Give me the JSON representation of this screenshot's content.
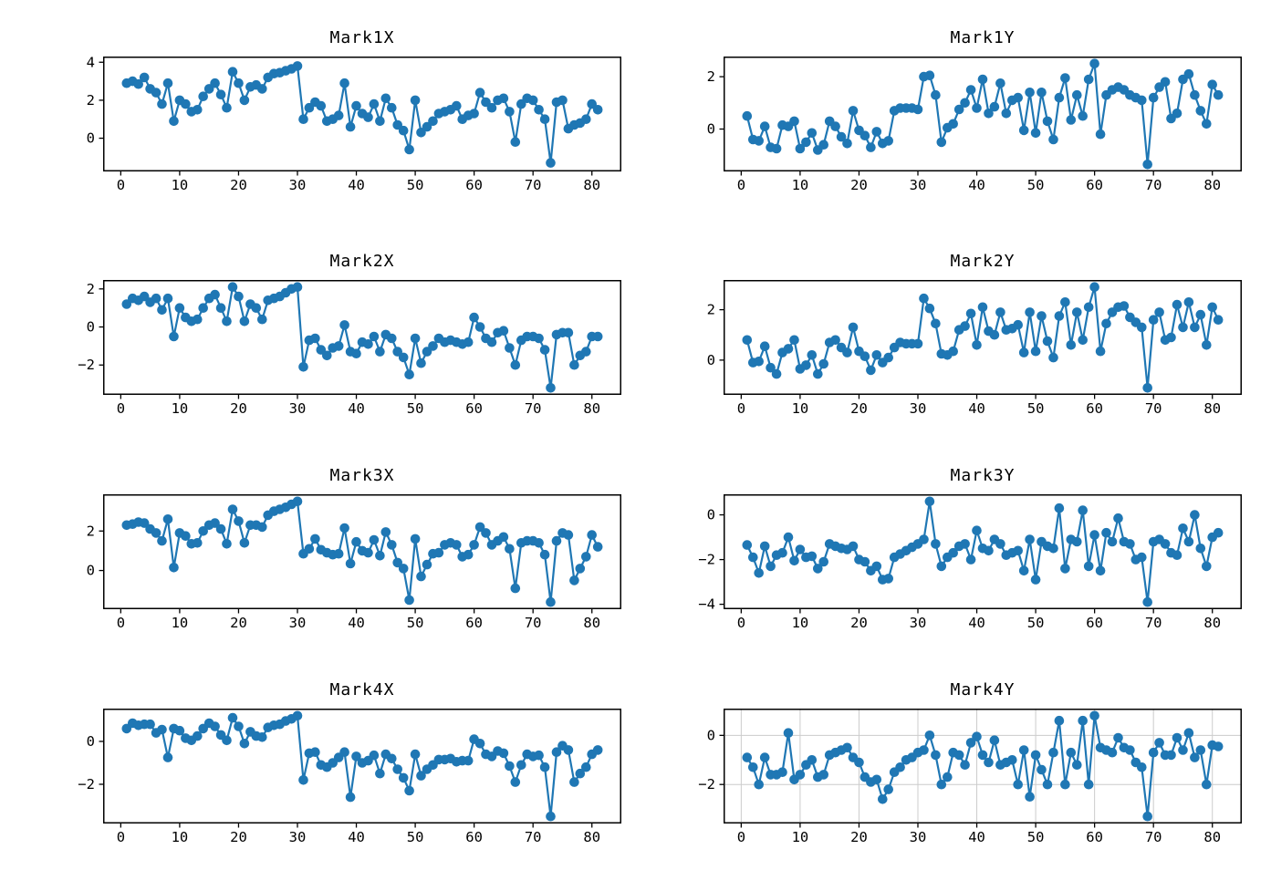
{
  "page": {
    "background": "#ffffff",
    "text_color": "#000000"
  },
  "chart_data": [
    {
      "id": "mark1x",
      "type": "line",
      "title": "Mark1X",
      "color": "#1f77b4",
      "marker": "circle",
      "grid": false,
      "legend": "none",
      "x_start": 1,
      "x_step": 1,
      "xlim": [
        -3,
        85
      ],
      "xticks": [
        0,
        10,
        20,
        30,
        40,
        50,
        60,
        70,
        80
      ],
      "ylim": [
        -1.75,
        4.3
      ],
      "yticks": [
        0,
        2,
        4
      ],
      "values": [
        2.9,
        3.0,
        2.85,
        3.2,
        2.6,
        2.4,
        1.8,
        2.9,
        0.9,
        2.0,
        1.8,
        1.4,
        1.5,
        2.2,
        2.6,
        2.9,
        2.3,
        1.6,
        3.5,
        2.9,
        2.0,
        2.7,
        2.8,
        2.6,
        3.2,
        3.4,
        3.45,
        3.55,
        3.65,
        3.8,
        1.0,
        1.6,
        1.9,
        1.7,
        0.9,
        1.0,
        1.2,
        2.9,
        0.6,
        1.7,
        1.3,
        1.1,
        1.8,
        0.9,
        2.1,
        1.6,
        0.7,
        0.4,
        -0.6,
        2.0,
        0.3,
        0.6,
        0.9,
        1.3,
        1.4,
        1.5,
        1.7,
        1.0,
        1.2,
        1.3,
        2.4,
        1.9,
        1.6,
        2.0,
        2.1,
        1.4,
        -0.2,
        1.8,
        2.1,
        2.0,
        1.5,
        1.0,
        -1.3,
        1.9,
        2.0,
        0.5,
        0.7,
        0.8,
        1.0,
        1.8,
        1.5
      ]
    },
    {
      "id": "mark1y",
      "type": "line",
      "title": "Mark1Y",
      "color": "#1f77b4",
      "marker": "circle",
      "grid": false,
      "legend": "none",
      "x_start": 1,
      "x_step": 1,
      "xlim": [
        -3,
        85
      ],
      "xticks": [
        0,
        10,
        20,
        30,
        40,
        50,
        60,
        70,
        80
      ],
      "ylim": [
        -1.62,
        2.77
      ],
      "yticks": [
        0,
        2
      ],
      "values": [
        0.5,
        -0.4,
        -0.45,
        0.1,
        -0.7,
        -0.75,
        0.15,
        0.1,
        0.3,
        -0.75,
        -0.5,
        -0.15,
        -0.8,
        -0.6,
        0.3,
        0.1,
        -0.3,
        -0.55,
        0.7,
        -0.05,
        -0.25,
        -0.7,
        -0.1,
        -0.55,
        -0.45,
        0.7,
        0.8,
        0.8,
        0.8,
        0.75,
        2.0,
        2.05,
        1.3,
        -0.5,
        0.05,
        0.2,
        0.75,
        1.0,
        1.5,
        0.8,
        1.9,
        0.6,
        0.85,
        1.75,
        0.6,
        1.1,
        1.2,
        -0.05,
        1.4,
        -0.15,
        1.4,
        0.3,
        -0.4,
        1.2,
        1.95,
        0.35,
        1.3,
        0.5,
        1.9,
        2.5,
        -0.2,
        1.3,
        1.5,
        1.6,
        1.5,
        1.3,
        1.2,
        1.1,
        -1.35,
        1.2,
        1.6,
        1.8,
        0.4,
        0.6,
        1.9,
        2.1,
        1.3,
        0.7,
        0.2,
        1.7,
        1.3
      ]
    },
    {
      "id": "mark2x",
      "type": "line",
      "title": "Mark2X",
      "color": "#1f77b4",
      "marker": "circle",
      "grid": false,
      "legend": "none",
      "x_start": 1,
      "x_step": 1,
      "xlim": [
        -3,
        85
      ],
      "xticks": [
        0,
        10,
        20,
        30,
        40,
        50,
        60,
        70,
        80
      ],
      "ylim": [
        -3.57,
        2.47
      ],
      "yticks": [
        -2,
        0,
        2
      ],
      "values": [
        1.2,
        1.5,
        1.4,
        1.6,
        1.3,
        1.5,
        0.9,
        1.5,
        -0.5,
        1.0,
        0.5,
        0.3,
        0.4,
        1.0,
        1.5,
        1.7,
        1.0,
        0.3,
        2.1,
        1.6,
        0.3,
        1.2,
        1.0,
        0.4,
        1.4,
        1.5,
        1.6,
        1.8,
        2.0,
        2.1,
        -2.1,
        -0.7,
        -0.6,
        -1.2,
        -1.5,
        -1.1,
        -1.0,
        0.1,
        -1.3,
        -1.4,
        -0.8,
        -0.9,
        -0.5,
        -1.3,
        -0.4,
        -0.6,
        -1.3,
        -1.6,
        -2.5,
        -0.6,
        -1.9,
        -1.3,
        -1.0,
        -0.6,
        -0.8,
        -0.7,
        -0.8,
        -0.9,
        -0.8,
        0.5,
        0.0,
        -0.6,
        -0.8,
        -0.3,
        -0.2,
        -1.1,
        -2.0,
        -0.7,
        -0.5,
        -0.5,
        -0.6,
        -1.2,
        -3.2,
        -0.4,
        -0.3,
        -0.3,
        -2.0,
        -1.5,
        -1.3,
        -0.5,
        -0.5
      ]
    },
    {
      "id": "mark2y",
      "type": "line",
      "title": "Mark2Y",
      "color": "#1f77b4",
      "marker": "circle",
      "grid": false,
      "legend": "none",
      "x_start": 1,
      "x_step": 1,
      "xlim": [
        -3,
        85
      ],
      "xticks": [
        0,
        10,
        20,
        30,
        40,
        50,
        60,
        70,
        80
      ],
      "ylim": [
        -1.38,
        3.18
      ],
      "yticks": [
        0,
        2
      ],
      "values": [
        0.8,
        -0.1,
        -0.05,
        0.55,
        -0.3,
        -0.55,
        0.3,
        0.45,
        0.8,
        -0.35,
        -0.2,
        0.2,
        -0.55,
        -0.15,
        0.7,
        0.8,
        0.5,
        0.3,
        1.3,
        0.35,
        0.15,
        -0.4,
        0.2,
        -0.1,
        0.1,
        0.5,
        0.7,
        0.65,
        0.65,
        0.65,
        2.45,
        2.05,
        1.45,
        0.25,
        0.2,
        0.35,
        1.2,
        1.35,
        1.85,
        0.6,
        2.1,
        1.15,
        1.0,
        1.9,
        1.2,
        1.25,
        1.4,
        0.3,
        1.9,
        0.35,
        1.75,
        0.75,
        0.1,
        1.75,
        2.3,
        0.6,
        1.9,
        0.8,
        2.1,
        2.9,
        0.35,
        1.45,
        1.9,
        2.1,
        2.15,
        1.7,
        1.5,
        1.3,
        -1.1,
        1.6,
        1.9,
        0.8,
        0.9,
        2.2,
        1.3,
        2.3,
        1.3,
        1.8,
        0.6,
        2.1,
        1.6
      ]
    },
    {
      "id": "mark3x",
      "type": "line",
      "title": "Mark3X",
      "color": "#1f77b4",
      "marker": "circle",
      "grid": false,
      "legend": "none",
      "x_start": 1,
      "x_step": 1,
      "xlim": [
        -3,
        85
      ],
      "xticks": [
        0,
        10,
        20,
        30,
        40,
        50,
        60,
        70,
        80
      ],
      "ylim": [
        -1.96,
        3.86
      ],
      "yticks": [
        0,
        2
      ],
      "values": [
        2.3,
        2.35,
        2.45,
        2.4,
        2.1,
        1.9,
        1.5,
        2.6,
        0.15,
        1.9,
        1.75,
        1.35,
        1.4,
        2.0,
        2.3,
        2.4,
        2.1,
        1.35,
        3.1,
        2.5,
        1.4,
        2.3,
        2.3,
        2.2,
        2.8,
        3.0,
        3.1,
        3.2,
        3.35,
        3.5,
        0.85,
        1.1,
        1.6,
        1.05,
        0.9,
        0.8,
        0.85,
        2.15,
        0.35,
        1.45,
        1.0,
        0.9,
        1.55,
        0.75,
        1.95,
        1.3,
        0.4,
        0.1,
        -1.5,
        1.6,
        -0.3,
        0.3,
        0.85,
        0.9,
        1.3,
        1.4,
        1.3,
        0.7,
        0.8,
        1.3,
        2.2,
        1.9,
        1.3,
        1.5,
        1.7,
        1.1,
        -0.9,
        1.4,
        1.5,
        1.5,
        1.4,
        0.8,
        -1.6,
        1.5,
        1.9,
        1.8,
        -0.5,
        0.1,
        0.7,
        1.8,
        1.2
      ]
    },
    {
      "id": "mark3y",
      "type": "line",
      "title": "Mark3Y",
      "color": "#1f77b4",
      "marker": "circle",
      "grid": false,
      "legend": "none",
      "x_start": 1,
      "x_step": 1,
      "xlim": [
        -3,
        85
      ],
      "xticks": [
        0,
        10,
        20,
        30,
        40,
        50,
        60,
        70,
        80
      ],
      "ylim": [
        -4.22,
        0.92
      ],
      "yticks": [
        -4,
        -2,
        0
      ],
      "values": [
        -1.35,
        -1.9,
        -2.6,
        -1.4,
        -2.3,
        -1.8,
        -1.7,
        -1.0,
        -2.05,
        -1.55,
        -1.9,
        -1.85,
        -2.4,
        -2.1,
        -1.3,
        -1.4,
        -1.5,
        -1.55,
        -1.4,
        -2.0,
        -2.1,
        -2.5,
        -2.3,
        -2.9,
        -2.85,
        -1.9,
        -1.75,
        -1.6,
        -1.45,
        -1.3,
        -1.1,
        0.6,
        -1.3,
        -2.3,
        -1.9,
        -1.7,
        -1.4,
        -1.3,
        -2.0,
        -0.7,
        -1.5,
        -1.6,
        -1.1,
        -1.3,
        -1.8,
        -1.7,
        -1.6,
        -2.5,
        -1.1,
        -2.9,
        -1.2,
        -1.4,
        -1.5,
        0.3,
        -2.4,
        -1.1,
        -1.2,
        0.2,
        -2.3,
        -0.9,
        -2.5,
        -0.8,
        -1.2,
        -0.15,
        -1.2,
        -1.3,
        -2.0,
        -1.9,
        -3.9,
        -1.2,
        -1.1,
        -1.3,
        -1.7,
        -1.8,
        -0.6,
        -1.2,
        0.0,
        -1.5,
        -2.3,
        -1.0,
        -0.8
      ]
    },
    {
      "id": "mark4x",
      "type": "line",
      "title": "Mark4X",
      "color": "#1f77b4",
      "marker": "circle",
      "grid": false,
      "legend": "none",
      "x_start": 1,
      "x_step": 1,
      "xlim": [
        -3,
        85
      ],
      "xticks": [
        0,
        10,
        20,
        30,
        40,
        50,
        60,
        70,
        80
      ],
      "ylim": [
        -3.83,
        1.53
      ],
      "yticks": [
        -2,
        0
      ],
      "values": [
        0.6,
        0.85,
        0.75,
        0.8,
        0.8,
        0.4,
        0.55,
        -0.75,
        0.6,
        0.5,
        0.15,
        0.05,
        0.25,
        0.6,
        0.85,
        0.7,
        0.3,
        0.05,
        1.1,
        0.7,
        -0.1,
        0.45,
        0.25,
        0.2,
        0.65,
        0.75,
        0.8,
        0.95,
        1.05,
        1.2,
        -1.8,
        -0.55,
        -0.5,
        -1.1,
        -1.2,
        -1.0,
        -0.75,
        -0.5,
        -2.6,
        -0.7,
        -1.0,
        -0.9,
        -0.65,
        -1.5,
        -0.6,
        -0.8,
        -1.3,
        -1.7,
        -2.3,
        -0.6,
        -1.6,
        -1.3,
        -1.1,
        -0.85,
        -0.85,
        -0.8,
        -0.95,
        -0.9,
        -0.9,
        0.1,
        -0.1,
        -0.6,
        -0.7,
        -0.45,
        -0.55,
        -1.15,
        -1.9,
        -1.1,
        -0.6,
        -0.7,
        -0.65,
        -1.2,
        -3.5,
        -0.5,
        -0.2,
        -0.4,
        -1.9,
        -1.5,
        -1.2,
        -0.6,
        -0.4
      ]
    },
    {
      "id": "mark4y",
      "type": "line",
      "title": "Mark4Y",
      "color": "#1f77b4",
      "marker": "circle",
      "grid": true,
      "grid_color": "#cccccc",
      "legend": "none",
      "x_start": 1,
      "x_step": 1,
      "xlim": [
        -3,
        85
      ],
      "xticks": [
        0,
        10,
        20,
        30,
        40,
        50,
        60,
        70,
        80
      ],
      "ylim": [
        -3.59,
        1.09
      ],
      "yticks": [
        -2,
        0
      ],
      "values": [
        -0.9,
        -1.3,
        -2.0,
        -0.9,
        -1.6,
        -1.6,
        -1.5,
        0.1,
        -1.8,
        -1.6,
        -1.2,
        -1.0,
        -1.7,
        -1.6,
        -0.8,
        -0.7,
        -0.6,
        -0.5,
        -0.9,
        -1.1,
        -1.7,
        -1.9,
        -1.8,
        -2.6,
        -2.2,
        -1.5,
        -1.3,
        -1.0,
        -0.9,
        -0.7,
        -0.6,
        0.0,
        -0.8,
        -2.0,
        -1.7,
        -0.7,
        -0.8,
        -1.2,
        -0.3,
        -0.05,
        -0.8,
        -1.1,
        -0.2,
        -1.2,
        -1.1,
        -1.0,
        -2.0,
        -0.6,
        -2.5,
        -0.8,
        -1.4,
        -2.0,
        -0.7,
        0.6,
        -2.0,
        -0.7,
        -1.2,
        0.6,
        -2.0,
        0.8,
        -0.5,
        -0.6,
        -0.7,
        -0.1,
        -0.5,
        -0.6,
        -1.1,
        -1.3,
        -3.3,
        -0.7,
        -0.3,
        -0.8,
        -0.8,
        -0.1,
        -0.6,
        0.1,
        -0.9,
        -0.6,
        -2.0,
        -0.4,
        -0.45
      ]
    }
  ]
}
